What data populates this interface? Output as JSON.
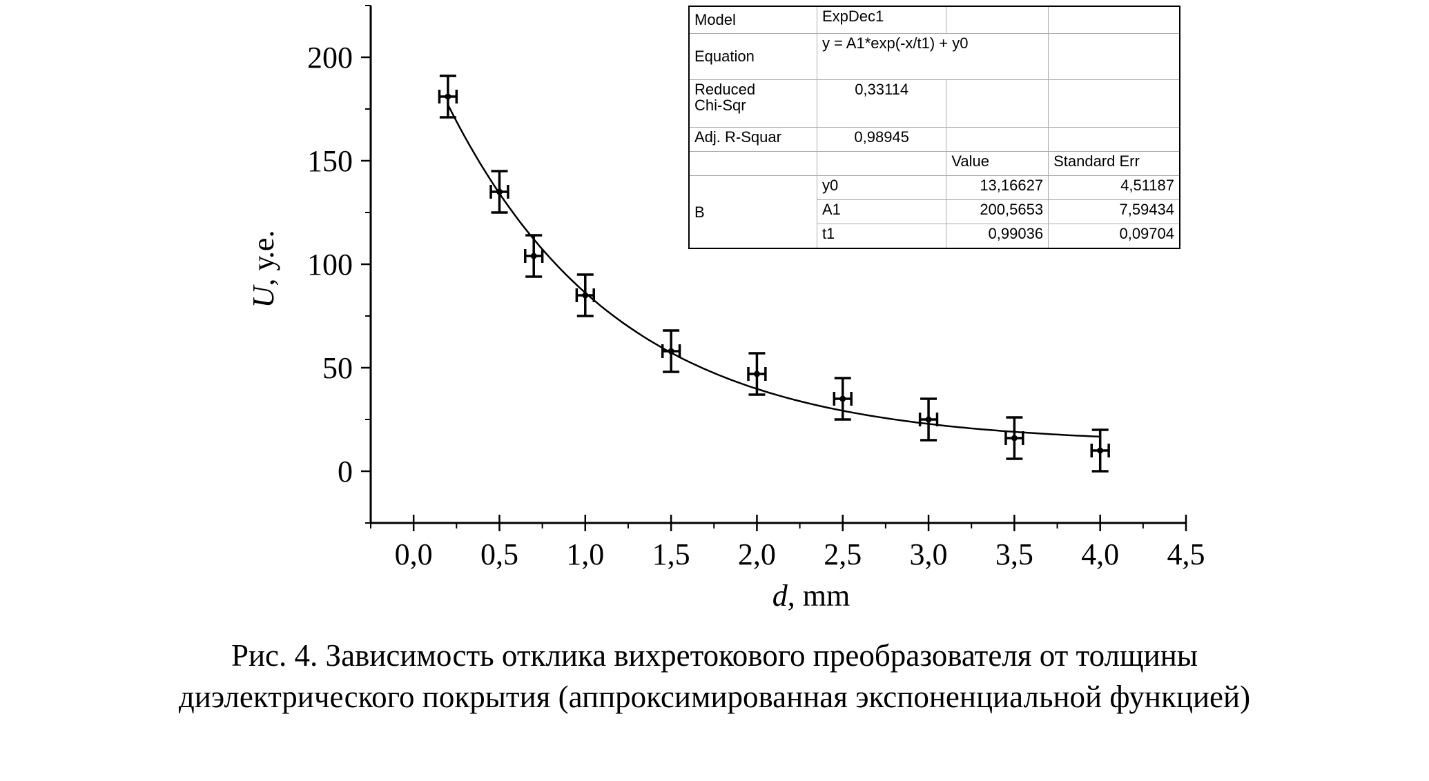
{
  "chart_data": {
    "type": "scatter",
    "xlabel_italic": "d",
    "xlabel_rest": ", mm",
    "ylabel_italic": "U",
    "ylabel_rest": ", у.е.",
    "xlim": [
      -0.25,
      4.5
    ],
    "ylim": [
      -25,
      225
    ],
    "x_ticks": [
      0.0,
      0.5,
      1.0,
      1.5,
      2.0,
      2.5,
      3.0,
      3.5,
      4.0,
      4.5
    ],
    "x_tick_labels": [
      "0,0",
      "0,5",
      "1,0",
      "1,5",
      "2,0",
      "2,5",
      "3,0",
      "3,5",
      "4,0",
      "4,5"
    ],
    "y_ticks": [
      0,
      50,
      100,
      150,
      200
    ],
    "y_tick_labels": [
      "0",
      "50",
      "100",
      "150",
      "200"
    ],
    "grid": false,
    "series": [
      {
        "points": [
          {
            "x": 0.2,
            "y": 181,
            "xerr": 0.05,
            "yerr": 10
          },
          {
            "x": 0.5,
            "y": 135,
            "xerr": 0.05,
            "yerr": 10
          },
          {
            "x": 0.7,
            "y": 104,
            "xerr": 0.05,
            "yerr": 10
          },
          {
            "x": 1.0,
            "y": 85,
            "xerr": 0.05,
            "yerr": 10
          },
          {
            "x": 1.5,
            "y": 58,
            "xerr": 0.05,
            "yerr": 10
          },
          {
            "x": 2.0,
            "y": 47,
            "xerr": 0.05,
            "yerr": 10
          },
          {
            "x": 2.5,
            "y": 35,
            "xerr": 0.05,
            "yerr": 10
          },
          {
            "x": 3.0,
            "y": 25,
            "xerr": 0.05,
            "yerr": 10
          },
          {
            "x": 3.5,
            "y": 16,
            "xerr": 0.05,
            "yerr": 10
          },
          {
            "x": 4.0,
            "y": 10,
            "xerr": 0.05,
            "yerr": 10
          }
        ]
      }
    ],
    "fit": {
      "model": "ExpDec1",
      "equation": "y = A1*exp(-x/t1) + y0",
      "y0": 13.16627,
      "A1": 200.5653,
      "t1": 0.99036,
      "x_range": [
        0.2,
        4.0
      ]
    },
    "fit_table": {
      "model_label": "Model",
      "model_value": "ExpDec1",
      "equation_label": "Equation",
      "equation_value": "y = A1*exp(-x/t1) + y0",
      "chi_label_line1": "Reduced",
      "chi_label_line2": "Chi-Sqr",
      "chi_value": "0,33114",
      "r2_label": "Adj. R-Squar",
      "r2_value": "0,98945",
      "col_value": "Value",
      "col_stderr": "Standard Err",
      "group_label": "B",
      "params": [
        {
          "name": "y0",
          "value": "13,16627",
          "stderr": "4,51187"
        },
        {
          "name": "A1",
          "value": "200,5653",
          "stderr": "7,59434"
        },
        {
          "name": "t1",
          "value": "0,99036",
          "stderr": "0,09704"
        }
      ]
    }
  },
  "caption": {
    "line1": "Рис. 4. Зависимость отклика вихретокового преобразователя от толщины",
    "line2": "диэлектрического покрытия (аппроксимированная экспоненциальной функцией)"
  }
}
